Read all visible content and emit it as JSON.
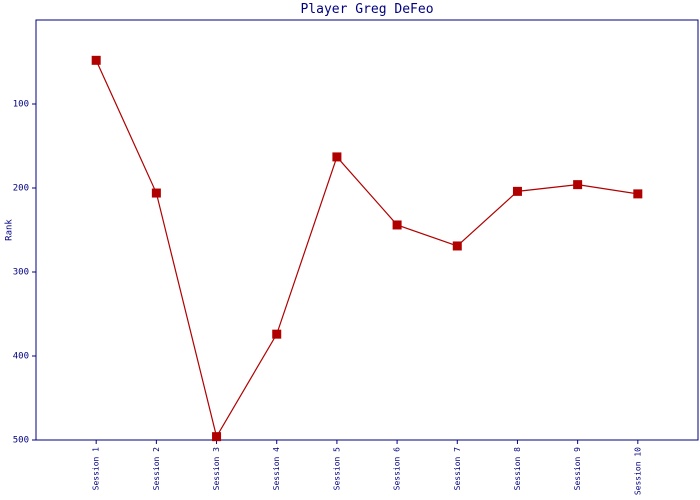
{
  "chart_data": {
    "type": "line",
    "title": "Player Greg DeFeo",
    "y_label": "Rank",
    "categories": [
      "Session 1",
      "Session 2",
      "Session 3",
      "Session 4",
      "Session 5",
      "Session 6",
      "Session 7",
      "Session 8",
      "Session 9",
      "Session 10"
    ],
    "series": [
      {
        "name": "Rank",
        "color": "#b00000",
        "values": [
          48,
          206,
          496,
          374,
          163,
          244,
          269,
          204,
          196,
          207
        ]
      }
    ],
    "ylim": [
      0,
      500
    ],
    "y_inverted": true,
    "yticks": [
      100,
      200,
      300,
      400,
      500
    ],
    "axis_color": "#000080"
  }
}
